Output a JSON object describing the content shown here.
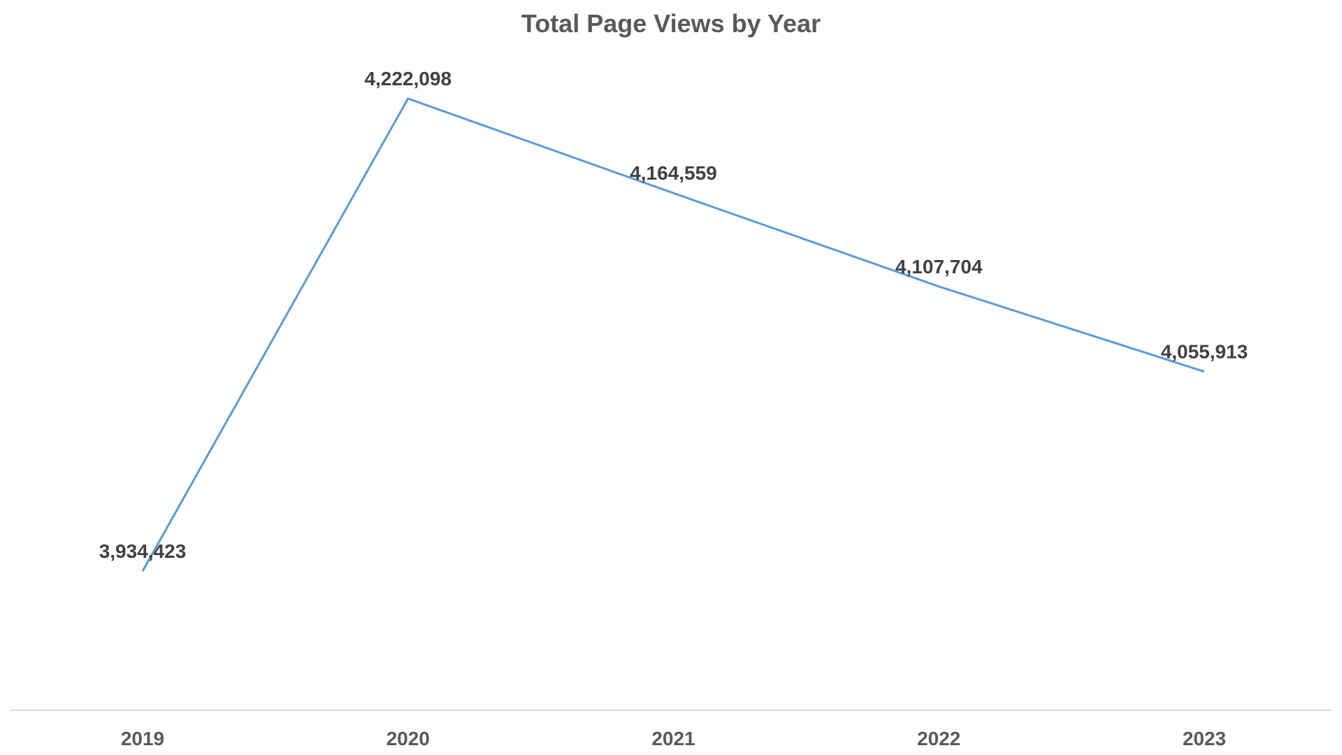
{
  "chart_data": {
    "type": "line",
    "title": "Total Page Views by Year",
    "categories": [
      "2019",
      "2020",
      "2021",
      "2022",
      "2023"
    ],
    "series": [
      {
        "values": [
          3934423,
          4222098,
          4164559,
          4107704,
          4055913
        ],
        "labels": [
          "3,934,423",
          "4,222,098",
          "4,164,559",
          "4,107,704",
          "4,055,913"
        ],
        "color": "#5B9BD5"
      }
    ],
    "xlabel": "",
    "ylabel": "",
    "ylim": [
      3800000,
      4250000
    ],
    "grid": false,
    "legend": "none",
    "axis_color": "#D9D9D9"
  }
}
